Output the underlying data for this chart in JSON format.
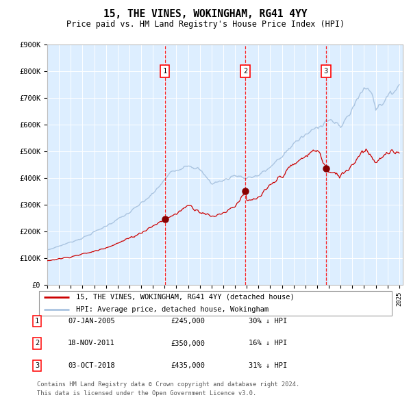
{
  "title": "15, THE VINES, WOKINGHAM, RG41 4YY",
  "subtitle": "Price paid vs. HM Land Registry's House Price Index (HPI)",
  "ylim": [
    0,
    900000
  ],
  "yticks": [
    0,
    100000,
    200000,
    300000,
    400000,
    500000,
    600000,
    700000,
    800000,
    900000
  ],
  "ytick_labels": [
    "£0",
    "£100K",
    "£200K",
    "£300K",
    "£400K",
    "£500K",
    "£600K",
    "£700K",
    "£800K",
    "£900K"
  ],
  "hpi_color": "#aac4e0",
  "price_color": "#cc0000",
  "bg_color": "#ddeeff",
  "sale_years_num": [
    2005.018,
    2011.885,
    2018.753
  ],
  "sale_prices": [
    245000,
    350000,
    435000
  ],
  "sale_labels": [
    "1",
    "2",
    "3"
  ],
  "sale_date_strs": [
    "07-JAN-2005",
    "18-NOV-2011",
    "03-OCT-2018"
  ],
  "sale_price_strs": [
    "£245,000",
    "£350,000",
    "£435,000"
  ],
  "sale_pct_strs": [
    "30% ↓ HPI",
    "16% ↓ HPI",
    "31% ↓ HPI"
  ],
  "legend_line1": "15, THE VINES, WOKINGHAM, RG41 4YY (detached house)",
  "legend_line2": "HPI: Average price, detached house, Wokingham",
  "footer_line1": "Contains HM Land Registry data © Crown copyright and database right 2024.",
  "footer_line2": "This data is licensed under the Open Government Licence v3.0.",
  "x_start_year": 1995,
  "x_end_year": 2025
}
